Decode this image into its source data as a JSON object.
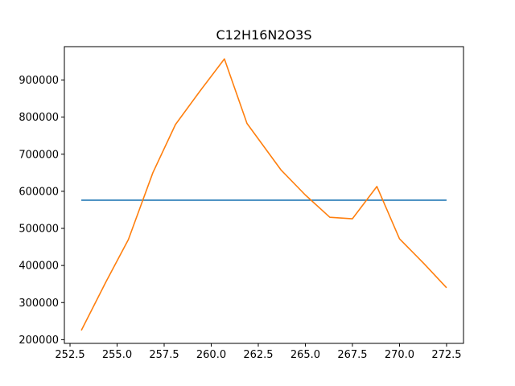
{
  "chart_data": {
    "type": "line",
    "title": "C12H16N2O3S",
    "xlabel": "",
    "ylabel": "",
    "xlim": [
      252.2,
      273.4
    ],
    "ylim": [
      190000,
      990000
    ],
    "x_ticks": [
      252.5,
      255.0,
      257.5,
      260.0,
      262.5,
      265.0,
      267.5,
      270.0,
      272.5
    ],
    "x_tick_labels": [
      "252.5",
      "255.0",
      "257.5",
      "260.0",
      "262.5",
      "265.0",
      "267.5",
      "270.0",
      "272.5"
    ],
    "y_ticks": [
      200000,
      300000,
      400000,
      500000,
      600000,
      700000,
      800000,
      900000
    ],
    "y_tick_labels": [
      "200000",
      "300000",
      "400000",
      "500000",
      "600000",
      "700000",
      "800000",
      "900000"
    ],
    "grid": false,
    "legend": "none",
    "series": [
      {
        "color": "#1f77b4",
        "x": [
          253.1,
          272.5
        ],
        "y": [
          576000,
          576000
        ]
      },
      {
        "color": "#ff7f0e",
        "x": [
          253.1,
          254.4,
          255.6,
          256.9,
          258.1,
          259.4,
          260.7,
          261.9,
          263.7,
          265.0,
          266.3,
          267.5,
          268.8,
          270.0,
          271.3,
          272.5
        ],
        "y": [
          225000,
          355000,
          470000,
          650000,
          780000,
          870000,
          957000,
          783000,
          658000,
          590000,
          530000,
          526000,
          613000,
          472000,
          405000,
          340000
        ]
      }
    ]
  }
}
